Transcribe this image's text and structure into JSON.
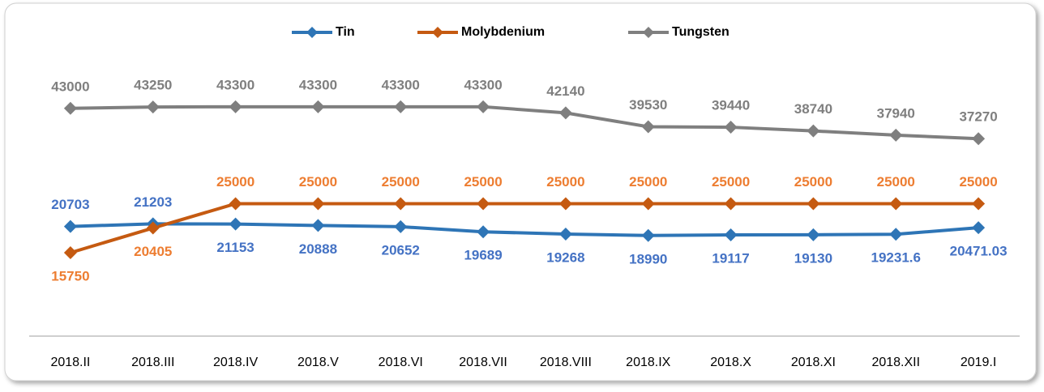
{
  "chart_data": {
    "type": "line",
    "categories": [
      "2018.II",
      "2018.III",
      "2018.IV",
      "2018.V",
      "2018.VI",
      "2018.VII",
      "2018.VIII",
      "2018.IX",
      "2018.X",
      "2018.XI",
      "2018.XII",
      "2019.I"
    ],
    "series": [
      {
        "name": "Tin",
        "color": "#2e75b6",
        "label_color": "#4472c4",
        "values": [
          20703,
          21203,
          21153,
          20888,
          20652,
          19689,
          19268,
          18990,
          19117,
          19130,
          19231.6,
          20471.03
        ]
      },
      {
        "name": "Molybdenium",
        "color": "#c55a11",
        "label_color": "#ed7d31",
        "values": [
          15750,
          20405,
          25000,
          25000,
          25000,
          25000,
          25000,
          25000,
          25000,
          25000,
          25000,
          25000
        ]
      },
      {
        "name": "Tungsten",
        "color": "#7f7f7f",
        "label_color": "#7f7f7f",
        "values": [
          43000,
          43250,
          43300,
          43300,
          43300,
          43300,
          42140,
          39530,
          39440,
          38740,
          37940,
          37270
        ]
      }
    ],
    "ylim": [
      0,
      50000
    ],
    "legend": "top"
  }
}
